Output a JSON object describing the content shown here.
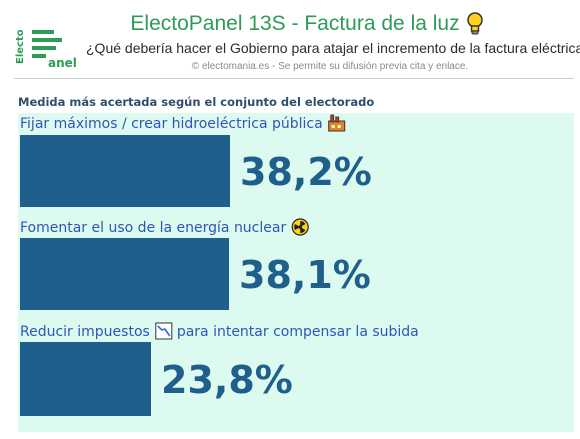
{
  "header": {
    "logo_vertical": "Electo",
    "logo_word": "anel",
    "title": "ElectoPanel 13S - Factura de la luz",
    "subtitle": "¿Qué debería hacer el Gobierno para atajar el incremento de la factura eléctrica?",
    "credit": "© electomania.es - Se permite su difusión previa cita y enlace."
  },
  "icons": {
    "title_icon": "lightbulb-icon",
    "factory_icon": "factory-icon",
    "nuclear_icon": "radioactive-icon",
    "chart_icon": "chart-decreasing-icon"
  },
  "colors": {
    "brand_green": "#2e9b57",
    "bar": "#1e5f8c",
    "value_text": "#1e5f8c",
    "category_text": "#2f55b8",
    "panel_bg": "#ddfaf0"
  },
  "chart_data": {
    "type": "bar",
    "orientation": "horizontal",
    "title": "Medida más acertada según el conjunto del electorado",
    "categories": [
      "Fijar máximos / crear hidroeléctrica pública",
      "Fomentar el uso de la energía nuclear",
      "Reducir impuestos para intentar compensar la subida"
    ],
    "category_label_parts": [
      {
        "before": "Fijar máximos / crear hidroeléctrica pública",
        "icon": "factory-icon",
        "after": ""
      },
      {
        "before": "Fomentar el uso de la energía nuclear",
        "icon": "radioactive-icon",
        "after": ""
      },
      {
        "before": "Reducir impuestos",
        "icon": "chart-decreasing-icon",
        "after": "para intentar compensar la subida"
      }
    ],
    "values": [
      38.2,
      38.1,
      23.8
    ],
    "value_labels": [
      "38,2%",
      "38,1%",
      "23,8%"
    ],
    "unit": "%",
    "legend": "none",
    "grid": false
  }
}
